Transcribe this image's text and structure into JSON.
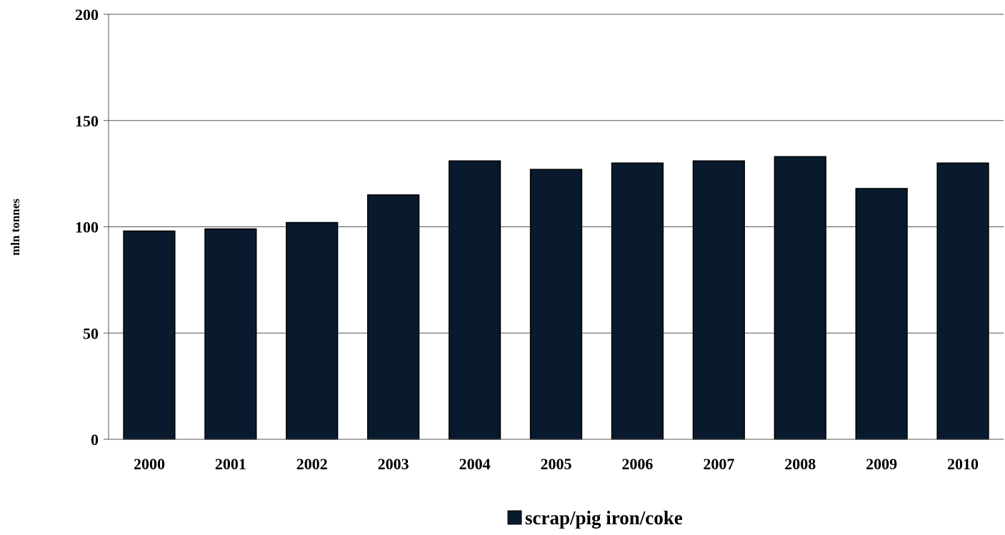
{
  "chart_data": {
    "type": "bar",
    "title": "",
    "xlabel": "",
    "ylabel": "mln tonnes",
    "categories": [
      "2000",
      "2001",
      "2002",
      "2003",
      "2004",
      "2005",
      "2006",
      "2007",
      "2008",
      "2009",
      "2010"
    ],
    "series": [
      {
        "name": "scrap/pig iron/coke",
        "values": [
          98,
          99,
          102,
          115,
          131,
          127,
          130,
          131,
          133,
          118,
          130
        ]
      }
    ],
    "ylim": [
      0,
      200
    ],
    "yticks": [
      "0",
      "50",
      "100",
      "150",
      "200"
    ],
    "grid": true,
    "legend_position": "bottom",
    "colors": {
      "bar_fill": "#091a2e",
      "bar_stroke": "#000000",
      "grid": "#555555",
      "axis": "#555555"
    }
  }
}
